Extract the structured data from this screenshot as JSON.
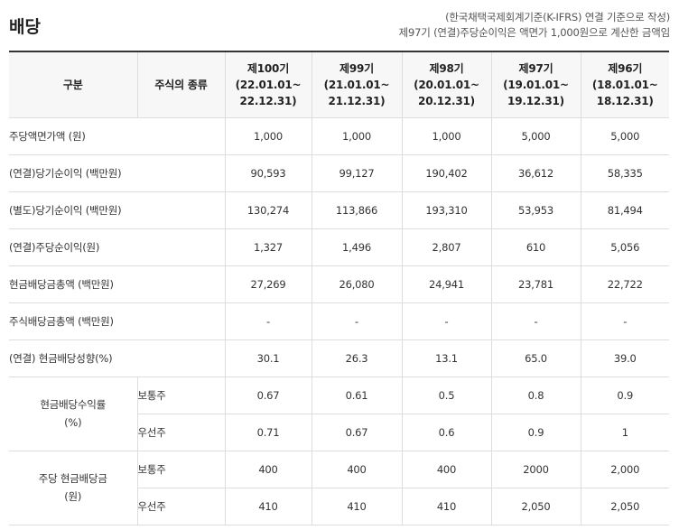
{
  "title": "배당",
  "notes": [
    "(한국채택국제회계기준(K-IFRS) 연결 기준으로 작성)",
    "제97기 (연결)주당순이익은 액면가 1,000원으로 계산한 금액임"
  ],
  "header": {
    "category": "구분",
    "stock_type": "주식의 종류",
    "periods": [
      {
        "name": "제100기",
        "range_start": "(22.01.01~",
        "range_end": "22.12.31)"
      },
      {
        "name": "제99기",
        "range_start": "(21.01.01~",
        "range_end": "21.12.31)"
      },
      {
        "name": "제98기",
        "range_start": "(20.01.01~",
        "range_end": "20.12.31)"
      },
      {
        "name": "제97기",
        "range_start": "(19.01.01~",
        "range_end": "19.12.31)"
      },
      {
        "name": "제96기",
        "range_start": "(18.01.01~",
        "range_end": "18.12.31)"
      }
    ]
  },
  "rows": [
    {
      "label": "주당액면가액 (원)",
      "values": [
        "1,000",
        "1,000",
        "1,000",
        "5,000",
        "5,000"
      ]
    },
    {
      "label": "(연결)당기순이익 (백만원)",
      "values": [
        "90,593",
        "99,127",
        "190,402",
        "36,612",
        "58,335"
      ]
    },
    {
      "label": "(별도)당기순이익 (백만원)",
      "values": [
        "130,274",
        "113,866",
        "193,310",
        "53,953",
        "81,494"
      ]
    },
    {
      "label": "(연결)주당순이익(원)",
      "values": [
        "1,327",
        "1,496",
        "2,807",
        "610",
        "5,056"
      ]
    },
    {
      "label": "현금배당금총액 (백만원)",
      "values": [
        "27,269",
        "26,080",
        "24,941",
        "23,781",
        "22,722"
      ]
    },
    {
      "label": "주식배당금총액 (백만원)",
      "values": [
        "-",
        "-",
        "-",
        "-",
        "-"
      ]
    },
    {
      "label": "(연결) 현금배당성향(%)",
      "values": [
        "30.1",
        "26.3",
        "13.1",
        "65.0",
        "39.0"
      ]
    }
  ],
  "groups": [
    {
      "label_line1": "현금배당수익률",
      "label_line2": "(%)",
      "subrows": [
        {
          "type": "보통주",
          "values": [
            "0.67",
            "0.61",
            "0.5",
            "0.8",
            "0.9"
          ]
        },
        {
          "type": "우선주",
          "values": [
            "0.71",
            "0.67",
            "0.6",
            "0.9",
            "1"
          ]
        }
      ]
    },
    {
      "label_line1": "주당 현금배당금",
      "label_line2": "(원)",
      "subrows": [
        {
          "type": "보통주",
          "values": [
            "400",
            "400",
            "400",
            "2000",
            "2,000"
          ]
        },
        {
          "type": "우선주",
          "values": [
            "410",
            "410",
            "410",
            "2,050",
            "2,050"
          ]
        }
      ]
    }
  ]
}
